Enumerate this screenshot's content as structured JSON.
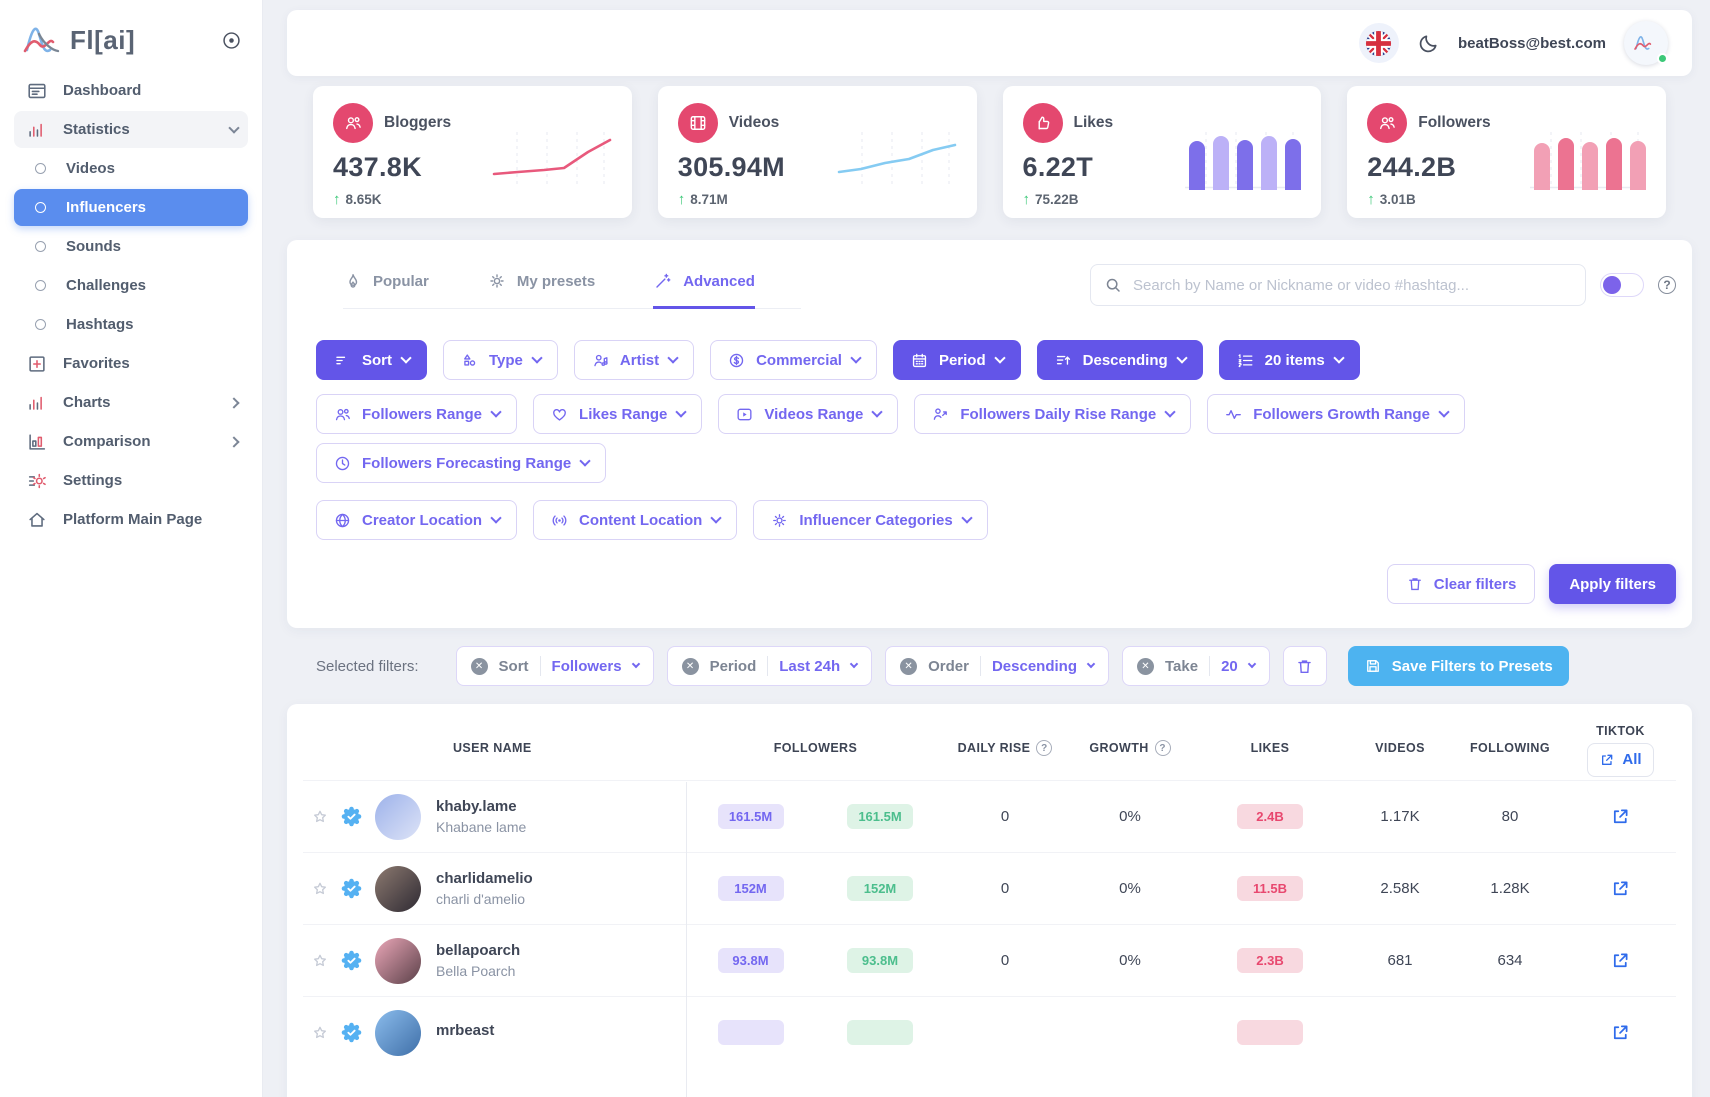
{
  "colors": {
    "accent": "#6355E8",
    "accent_text": "#7367F0",
    "sidebar_active_blue": "#5A8DEE",
    "save_blue": "#4DB3F0",
    "link_blue": "#2F6BEB",
    "green": "#3CC878",
    "stat_icon_pink": "#E4486F"
  },
  "sidebar": {
    "logo": "Fl[ai]",
    "items": [
      {
        "label": "Dashboard",
        "icon": "dashboard",
        "type": "item"
      },
      {
        "label": "Statistics",
        "icon": "bar-chart",
        "type": "group-open"
      },
      {
        "label": "Videos",
        "type": "sub"
      },
      {
        "label": "Influencers",
        "type": "sub",
        "active": true
      },
      {
        "label": "Sounds",
        "type": "sub"
      },
      {
        "label": "Challenges",
        "type": "sub"
      },
      {
        "label": "Hashtags",
        "type": "sub"
      },
      {
        "label": "Favorites",
        "icon": "plus-square",
        "type": "item"
      },
      {
        "label": "Charts",
        "icon": "bar-chart",
        "type": "item",
        "chevron": "right"
      },
      {
        "label": "Comparison",
        "icon": "comparison",
        "type": "item",
        "chevron": "right"
      },
      {
        "label": "Settings",
        "icon": "settings",
        "type": "item"
      },
      {
        "label": "Platform Main Page",
        "icon": "home",
        "type": "item"
      }
    ]
  },
  "header": {
    "email": "beatBoss@best.com"
  },
  "stats": [
    {
      "label": "Bloggers",
      "value": "437.8K",
      "delta": "8.65K",
      "icon": "users",
      "chart": {
        "type": "line",
        "color": "#E8597C",
        "points": [
          [
            2,
            46
          ],
          [
            26,
            44
          ],
          [
            52,
            42
          ],
          [
            72,
            40
          ],
          [
            96,
            24
          ],
          [
            118,
            12
          ]
        ]
      }
    },
    {
      "label": "Videos",
      "value": "305.94M",
      "delta": "8.71M",
      "icon": "film",
      "chart": {
        "type": "line",
        "color": "#85CBF2",
        "points": [
          [
            2,
            44
          ],
          [
            24,
            41
          ],
          [
            48,
            35
          ],
          [
            72,
            31
          ],
          [
            96,
            22
          ],
          [
            118,
            17
          ]
        ]
      }
    },
    {
      "label": "Likes",
      "value": "6.22T",
      "delta": "75.22B",
      "icon": "thumb",
      "chart": {
        "type": "bar",
        "colors": [
          "#7D6FEA",
          "#BCB1F7"
        ],
        "heights": [
          47,
          52,
          48,
          52,
          49
        ]
      }
    },
    {
      "label": "Followers",
      "value": "244.2B",
      "delta": "3.01B",
      "icon": "users",
      "chart": {
        "type": "bar",
        "colors": [
          "#F2A0B5",
          "#EC7391"
        ],
        "heights": [
          45,
          50,
          46,
          50,
          47
        ]
      }
    }
  ],
  "filters": {
    "tabs": [
      {
        "label": "Popular",
        "icon": "flame"
      },
      {
        "label": "My presets",
        "icon": "gear"
      },
      {
        "label": "Advanced",
        "icon": "wand",
        "active": true
      }
    ],
    "search_placeholder": "Search by Name or Nickname or video #hashtag...",
    "primary": [
      {
        "label": "Sort",
        "icon": "sort",
        "style": "filled"
      },
      {
        "label": "Type",
        "icon": "shapes",
        "style": "outline"
      },
      {
        "label": "Artist",
        "icon": "artist",
        "style": "outline"
      },
      {
        "label": "Commercial",
        "icon": "dollar",
        "style": "outline"
      },
      {
        "label": "Period",
        "icon": "calendar",
        "style": "filled"
      },
      {
        "label": "Descending",
        "icon": "sort-desc",
        "style": "filled"
      },
      {
        "label": "20 items",
        "icon": "list-num",
        "style": "filled"
      }
    ],
    "ranges": [
      {
        "label": "Followers Range",
        "icon": "users"
      },
      {
        "label": "Likes Range",
        "icon": "heart"
      },
      {
        "label": "Videos Range",
        "icon": "video"
      },
      {
        "label": "Followers Daily Rise Range",
        "icon": "person-rise"
      },
      {
        "label": "Followers Growth Range",
        "icon": "pulse"
      }
    ],
    "forecast": [
      {
        "label": "Followers Forecasting Range",
        "icon": "clock"
      }
    ],
    "locations": [
      {
        "label": "Creator Location",
        "icon": "globe"
      },
      {
        "label": "Content Location",
        "icon": "broadcast"
      },
      {
        "label": "Influencer Categories",
        "icon": "gear"
      }
    ],
    "clear_label": "Clear filters",
    "apply_label": "Apply filters"
  },
  "selected_filters": {
    "label": "Selected filters:",
    "chips": [
      {
        "name": "Sort",
        "value": "Followers"
      },
      {
        "name": "Period",
        "value": "Last 24h"
      },
      {
        "name": "Order",
        "value": "Descending"
      },
      {
        "name": "Take",
        "value": "20"
      }
    ],
    "save_label": "Save Filters to Presets"
  },
  "table": {
    "headers": {
      "user": "USER NAME",
      "followers": "FOLLOWERS",
      "daily_rise": "DAILY RISE",
      "growth": "GROWTH",
      "likes": "LIKES",
      "videos": "VIDEOS",
      "following": "FOLLOWING",
      "tiktok": "TIKTOK",
      "all": "All"
    },
    "rows": [
      {
        "username": "khaby.lame",
        "name": "Khabane lame",
        "followers": "161.5M",
        "followers2": "161.5M",
        "daily_rise": "0",
        "growth": "0%",
        "likes": "2.4B",
        "videos": "1.17K",
        "following": "80",
        "avatar": [
          "#9db2ea",
          "#dde3f7"
        ]
      },
      {
        "username": "charlidamelio",
        "name": "charli d'amelio",
        "followers": "152M",
        "followers2": "152M",
        "daily_rise": "0",
        "growth": "0%",
        "likes": "11.5B",
        "videos": "2.58K",
        "following": "1.28K",
        "avatar": [
          "#8d7a70",
          "#2e2a33"
        ]
      },
      {
        "username": "bellapoarch",
        "name": "Bella Poarch",
        "followers": "93.8M",
        "followers2": "93.8M",
        "daily_rise": "0",
        "growth": "0%",
        "likes": "2.3B",
        "videos": "681",
        "following": "634",
        "avatar": [
          "#eba7b8",
          "#5a4048"
        ]
      },
      {
        "username": "mrbeast",
        "name": "",
        "followers": "",
        "followers2": "",
        "daily_rise": "",
        "growth": "",
        "likes": "",
        "videos": "",
        "following": "",
        "avatar": [
          "#8bbcec",
          "#3f6fa8"
        ]
      }
    ]
  }
}
